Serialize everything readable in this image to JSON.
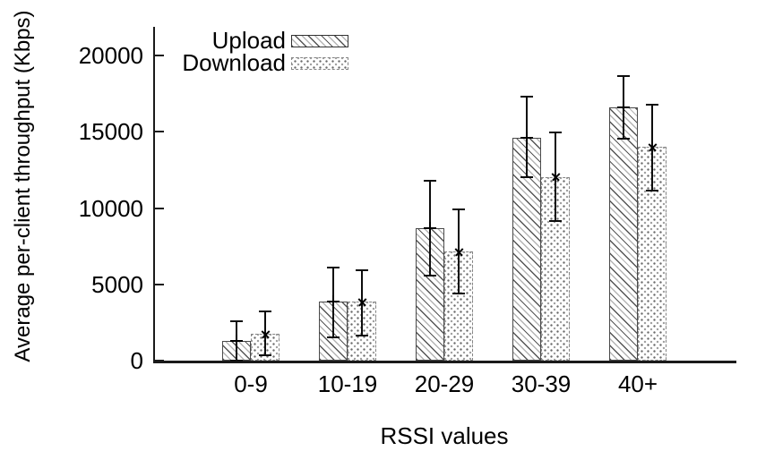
{
  "chart_data": {
    "type": "bar",
    "title": "",
    "xlabel": "RSSI values",
    "ylabel": "Average per-client throughput (Kbps)",
    "categories": [
      "0-9",
      "10-19",
      "20-29",
      "30-39",
      "40+"
    ],
    "yticks": [
      0,
      5000,
      10000,
      15000,
      20000
    ],
    "ytick_labels": [
      "0",
      "5000",
      "10000",
      "15000",
      "20000"
    ],
    "ylim": [
      0,
      21900
    ],
    "grid": false,
    "legend_position": "top-left-inside",
    "bar_style": "monochrome pattern fill with error bars",
    "series": [
      {
        "name": "Upload",
        "pattern": "diagonal-hatch",
        "marker": "plus",
        "values": [
          1300,
          3850,
          8700,
          14600,
          16600
        ],
        "err_low": [
          0,
          1550,
          5600,
          12000,
          14550
        ],
        "err_high": [
          2600,
          6100,
          11800,
          17300,
          18650
        ]
      },
      {
        "name": "Download",
        "pattern": "dot-mesh",
        "marker": "cross",
        "values": [
          1750,
          3850,
          7150,
          12050,
          14000
        ],
        "err_low": [
          350,
          1650,
          4400,
          9150,
          11150
        ],
        "err_high": [
          3250,
          5950,
          9900,
          14950,
          16750
        ]
      }
    ],
    "colors": {
      "foreground": "#000000",
      "background": "#ffffff",
      "bar_fill": "#ffffff",
      "hatch_dark": "#555555",
      "hatch_light": "#b5b5b5"
    }
  }
}
